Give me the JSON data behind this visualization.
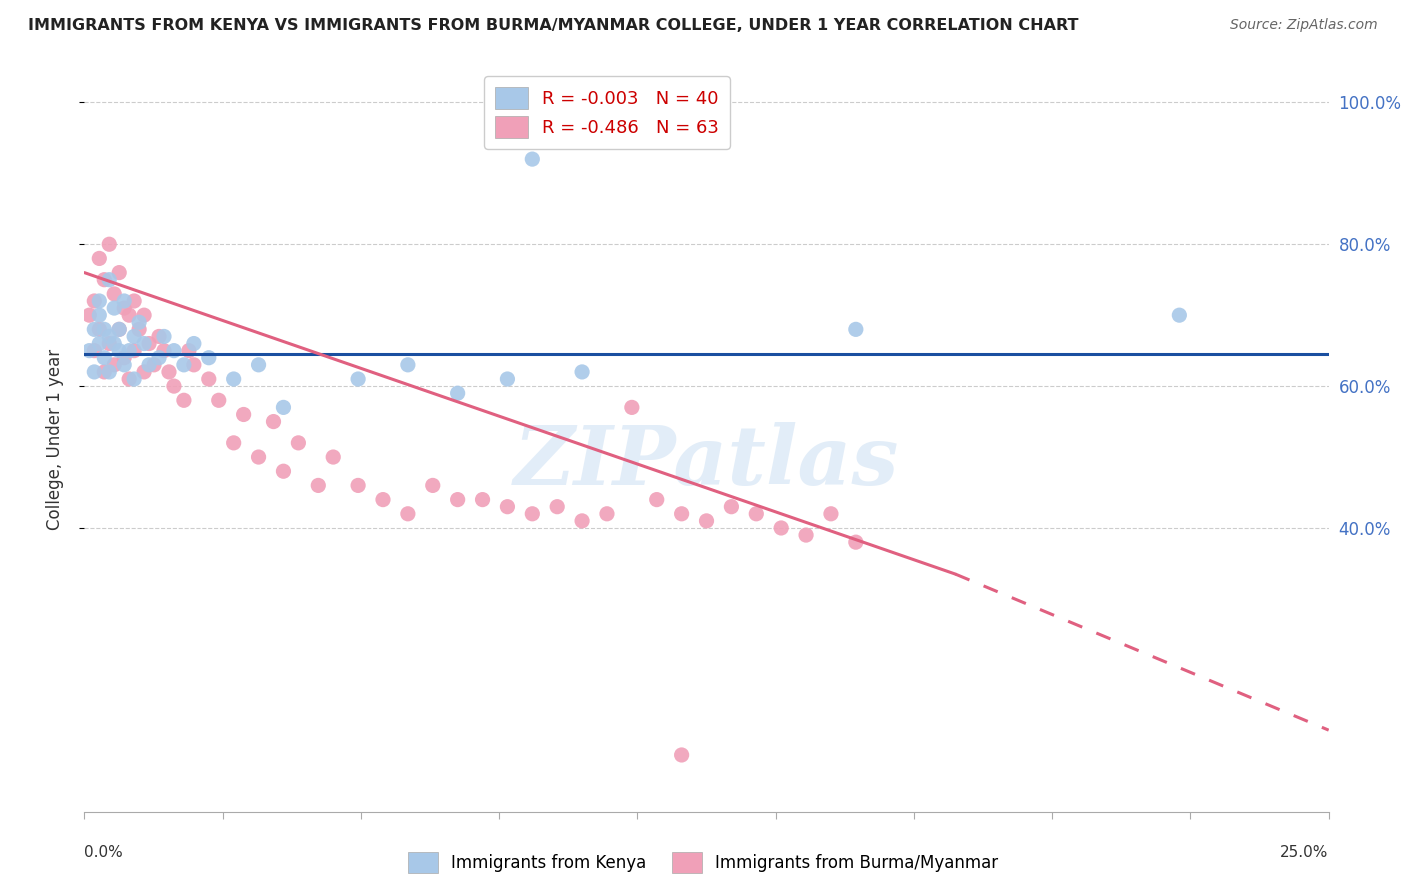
{
  "title": "IMMIGRANTS FROM KENYA VS IMMIGRANTS FROM BURMA/MYANMAR COLLEGE, UNDER 1 YEAR CORRELATION CHART",
  "source": "Source: ZipAtlas.com",
  "ylabel": "College, Under 1 year",
  "legend_kenya_r": "R = -0.003",
  "legend_kenya_n": "N = 40",
  "legend_burma_r": "R = -0.486",
  "legend_burma_n": "N = 63",
  "kenya_color": "#a8c8e8",
  "burma_color": "#f0a0b8",
  "kenya_line_color": "#1a4fa0",
  "burma_line_color": "#e06080",
  "right_tick_color": "#4472c4",
  "watermark": "ZIPatlas",
  "xlim": [
    0.0,
    0.25
  ],
  "ylim": [
    0.0,
    1.05
  ],
  "kenya_line_y": 0.645,
  "burma_line_x0": 0.0,
  "burma_line_y0": 0.76,
  "burma_line_x1": 0.175,
  "burma_line_y1": 0.335,
  "burma_line_dash_x1": 0.25,
  "burma_line_dash_y1": 0.115,
  "kenya_x": [
    0.001,
    0.002,
    0.002,
    0.003,
    0.003,
    0.003,
    0.004,
    0.004,
    0.005,
    0.005,
    0.005,
    0.006,
    0.006,
    0.007,
    0.007,
    0.008,
    0.008,
    0.009,
    0.01,
    0.01,
    0.011,
    0.012,
    0.013,
    0.015,
    0.016,
    0.018,
    0.02,
    0.022,
    0.025,
    0.03,
    0.035,
    0.04,
    0.055,
    0.065,
    0.075,
    0.085,
    0.09,
    0.1,
    0.155,
    0.22
  ],
  "kenya_y": [
    0.65,
    0.68,
    0.62,
    0.72,
    0.66,
    0.7,
    0.64,
    0.68,
    0.75,
    0.62,
    0.67,
    0.66,
    0.71,
    0.65,
    0.68,
    0.63,
    0.72,
    0.65,
    0.67,
    0.61,
    0.69,
    0.66,
    0.63,
    0.64,
    0.67,
    0.65,
    0.63,
    0.66,
    0.64,
    0.61,
    0.63,
    0.57,
    0.61,
    0.63,
    0.59,
    0.61,
    0.92,
    0.62,
    0.68,
    0.7
  ],
  "burma_x": [
    0.001,
    0.002,
    0.002,
    0.003,
    0.003,
    0.004,
    0.004,
    0.005,
    0.005,
    0.006,
    0.006,
    0.007,
    0.007,
    0.008,
    0.008,
    0.009,
    0.009,
    0.01,
    0.01,
    0.011,
    0.012,
    0.012,
    0.013,
    0.014,
    0.015,
    0.016,
    0.017,
    0.018,
    0.02,
    0.021,
    0.022,
    0.025,
    0.027,
    0.03,
    0.032,
    0.035,
    0.038,
    0.04,
    0.043,
    0.047,
    0.05,
    0.055,
    0.06,
    0.065,
    0.07,
    0.075,
    0.08,
    0.085,
    0.09,
    0.095,
    0.1,
    0.105,
    0.11,
    0.115,
    0.12,
    0.125,
    0.13,
    0.135,
    0.14,
    0.145,
    0.15,
    0.155,
    0.12
  ],
  "burma_y": [
    0.7,
    0.72,
    0.65,
    0.78,
    0.68,
    0.75,
    0.62,
    0.8,
    0.66,
    0.73,
    0.63,
    0.76,
    0.68,
    0.71,
    0.64,
    0.7,
    0.61,
    0.72,
    0.65,
    0.68,
    0.7,
    0.62,
    0.66,
    0.63,
    0.67,
    0.65,
    0.62,
    0.6,
    0.58,
    0.65,
    0.63,
    0.61,
    0.58,
    0.52,
    0.56,
    0.5,
    0.55,
    0.48,
    0.52,
    0.46,
    0.5,
    0.46,
    0.44,
    0.42,
    0.46,
    0.44,
    0.44,
    0.43,
    0.42,
    0.43,
    0.41,
    0.42,
    0.57,
    0.44,
    0.42,
    0.41,
    0.43,
    0.42,
    0.4,
    0.39,
    0.42,
    0.38,
    0.08
  ]
}
